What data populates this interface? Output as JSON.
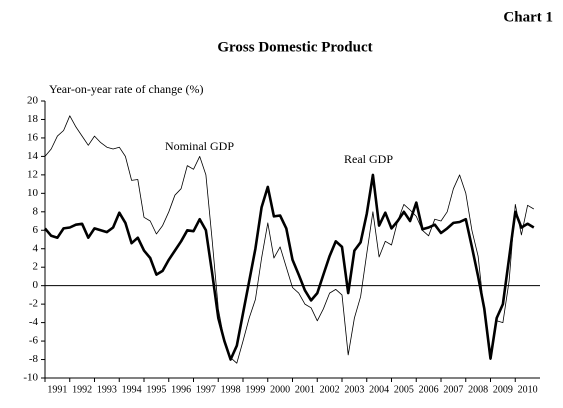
{
  "chart_data": {
    "type": "line",
    "corner_label": "Chart 1",
    "title": "Gross Domestic Product",
    "y_label": "Year-on-year rate of change (%)",
    "x": [
      1991,
      1991.25,
      1991.5,
      1991.75,
      1992,
      1992.25,
      1992.5,
      1992.75,
      1993,
      1993.25,
      1993.5,
      1993.75,
      1994,
      1994.25,
      1994.5,
      1994.75,
      1995,
      1995.25,
      1995.5,
      1995.75,
      1996,
      1996.25,
      1996.5,
      1996.75,
      1997,
      1997.25,
      1997.5,
      1997.75,
      1998,
      1998.25,
      1998.5,
      1998.75,
      1999,
      1999.25,
      1999.5,
      1999.75,
      2000,
      2000.25,
      2000.5,
      2000.75,
      2001,
      2001.25,
      2001.5,
      2001.75,
      2002,
      2002.25,
      2002.5,
      2002.75,
      2003,
      2003.25,
      2003.5,
      2003.75,
      2004,
      2004.25,
      2004.5,
      2004.75,
      2005,
      2005.25,
      2005.5,
      2005.75,
      2006,
      2006.25,
      2006.5,
      2006.75,
      2007,
      2007.25,
      2007.5,
      2007.75,
      2008,
      2008.25,
      2008.5,
      2008.75,
      2009,
      2009.25,
      2009.5,
      2009.75,
      2010,
      2010.25,
      2010.5,
      2010.75
    ],
    "series": [
      {
        "name": "Nominal GDP",
        "color": "#000000",
        "width": 0.8,
        "values": [
          14.0,
          14.8,
          16.2,
          16.8,
          18.4,
          17.2,
          16.2,
          15.2,
          16.2,
          15.5,
          15.0,
          14.8,
          15.0,
          14.0,
          11.4,
          11.5,
          7.4,
          7.0,
          5.6,
          6.5,
          8.0,
          9.8,
          10.5,
          13.0,
          12.6,
          14.0,
          12.0,
          5.0,
          -2.5,
          -6.0,
          -7.8,
          -8.4,
          -6.0,
          -3.5,
          -1.5,
          3.0,
          6.8,
          3.0,
          4.2,
          2.0,
          -0.2,
          -0.8,
          -2.0,
          -2.4,
          -3.8,
          -2.5,
          -0.8,
          -0.4,
          -1.0,
          -7.5,
          -3.5,
          -1.2,
          3.5,
          8.0,
          3.1,
          4.8,
          4.4,
          7.0,
          8.8,
          8.2,
          7.5,
          6.0,
          5.4,
          7.2,
          7.0,
          8.0,
          10.5,
          12.0,
          10.0,
          6.0,
          3.2,
          -3.0,
          -8.0,
          -3.8,
          -4.0,
          0.5,
          8.8,
          5.5,
          8.7,
          8.3
        ]
      },
      {
        "name": "Real GDP",
        "color": "#000000",
        "width": 2.6,
        "values": [
          6.2,
          5.4,
          5.2,
          6.2,
          6.3,
          6.6,
          6.7,
          5.2,
          6.2,
          6.0,
          5.8,
          6.3,
          7.9,
          6.8,
          4.6,
          5.2,
          3.8,
          3.0,
          1.2,
          1.6,
          2.8,
          3.8,
          4.8,
          6.0,
          5.9,
          7.2,
          6.0,
          1.4,
          -3.5,
          -6.0,
          -8.0,
          -6.5,
          -3.0,
          0.5,
          4.0,
          8.5,
          10.7,
          7.5,
          7.6,
          6.2,
          2.8,
          1.2,
          -0.5,
          -1.6,
          -0.8,
          1.2,
          3.2,
          4.8,
          4.2,
          -0.8,
          3.8,
          4.7,
          7.8,
          12.0,
          6.5,
          7.9,
          6.2,
          7.0,
          8.0,
          7.0,
          9.0,
          6.1,
          6.3,
          6.6,
          5.7,
          6.2,
          6.8,
          6.9,
          7.2,
          4.2,
          1.0,
          -2.5,
          -7.9,
          -3.5,
          -2.0,
          3.0,
          8.0,
          6.3,
          6.7,
          6.3
        ]
      }
    ],
    "xlim": [
      1991,
      2011
    ],
    "xticks": [
      1991,
      1992,
      1993,
      1994,
      1995,
      1996,
      1997,
      1998,
      1999,
      2000,
      2001,
      2002,
      2003,
      2004,
      2005,
      2006,
      2007,
      2008,
      2009,
      2010
    ],
    "ylim": [
      -10,
      20
    ],
    "yticks": [
      -10,
      -8,
      -6,
      -4,
      -2,
      0,
      2,
      4,
      6,
      8,
      10,
      12,
      14,
      16,
      18,
      20
    ]
  }
}
